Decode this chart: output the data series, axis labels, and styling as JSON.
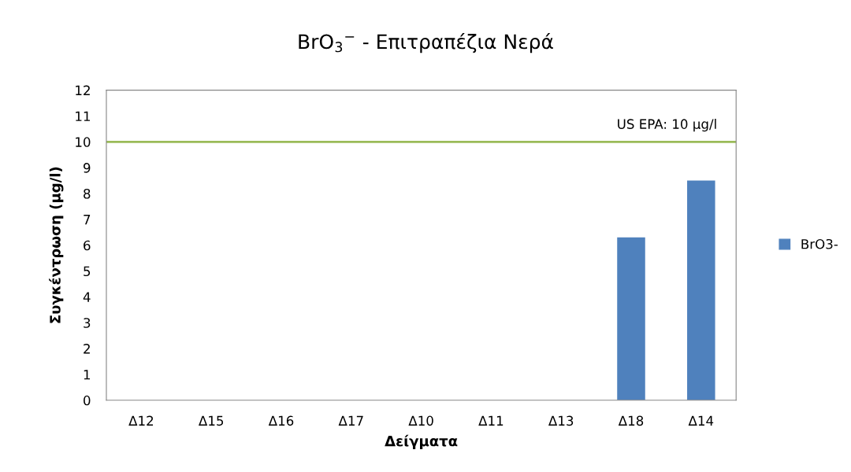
{
  "chart_data": {
    "type": "bar",
    "title": "BrO$_{3}$$^{−}$ - Επιτραπέζια Νερά",
    "xlabel": "Δείγματα",
    "ylabel": "Συγκέντρωση (μg/l)",
    "categories": [
      "Δ12",
      "Δ15",
      "Δ16",
      "Δ17",
      "Δ10",
      "Δ11",
      "Δ13",
      "Δ18",
      "Δ14"
    ],
    "series": [
      {
        "name": "BrO3-",
        "color": "#4f81bd",
        "values": [
          0,
          0,
          0,
          0,
          0,
          0,
          0,
          6.3,
          8.5
        ]
      }
    ],
    "ylim": [
      0,
      12
    ],
    "yticks": [
      0,
      1,
      2,
      3,
      4,
      5,
      6,
      7,
      8,
      9,
      10,
      11,
      12
    ],
    "grid": false,
    "legend": "right",
    "ref_lines": [
      {
        "axis": "y",
        "value": 10,
        "label": "US EPA: 10 μg/l",
        "color": "#9bbb59"
      }
    ]
  }
}
